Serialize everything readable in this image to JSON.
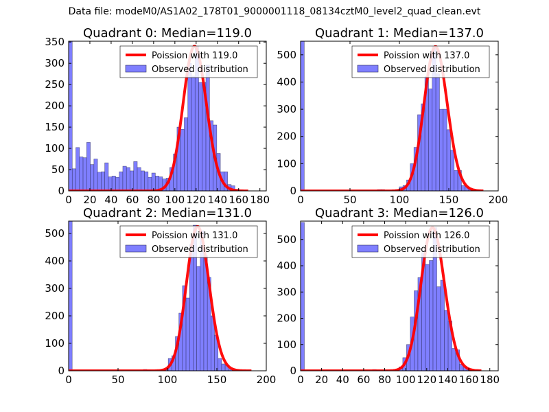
{
  "chart_data": {
    "suptitle": "Data file: modeM0/AS1A02_178T01_9000001118_08134cztM0_level2_quad_clean.evt",
    "colors": {
      "bars": "#7f7fff",
      "bar_edge": "#2a2a55",
      "poisson": "#ff0000"
    },
    "panels": [
      {
        "type": "bar",
        "title": "Quadrant 0: Median=119.0",
        "xlim": [
          0,
          186
        ],
        "ylim": [
          0,
          352
        ],
        "xticks": [
          0,
          20,
          40,
          60,
          80,
          100,
          120,
          140,
          160,
          180
        ],
        "yticks": [
          0,
          50,
          100,
          150,
          200,
          250,
          300,
          350
        ],
        "bin_width": 3.4,
        "x_left": [
          0,
          3.4,
          6.8,
          10.2,
          13.6,
          17,
          20.4,
          23.8,
          27.2,
          30.6,
          34,
          37.4,
          40.8,
          44.2,
          47.6,
          51,
          54.4,
          57.8,
          61.2,
          64.6,
          68,
          71.4,
          74.8,
          78.2,
          81.6,
          85,
          88.4,
          91.8,
          95.2,
          98.6,
          102,
          105.4,
          108.8,
          112.2,
          115.6,
          119,
          122.4,
          125.8,
          129.2,
          132.6,
          136,
          139.4,
          142.8,
          146.2,
          149.6,
          153,
          156.4,
          159.8
        ],
        "counts": [
          355,
          52,
          102,
          80,
          78,
          114,
          62,
          75,
          44,
          45,
          66,
          33,
          35,
          32,
          45,
          58,
          55,
          47,
          69,
          55,
          47,
          45,
          32,
          42,
          35,
          33,
          28,
          30,
          55,
          87,
          150,
          145,
          172,
          300,
          270,
          340,
          255,
          255,
          296,
          165,
          155,
          88,
          45,
          45,
          15,
          12,
          4,
          2
        ],
        "poisson": {
          "label": "Poission with 119.0",
          "lambda": 119.0,
          "peak": 340,
          "x_range": [
            0,
            169
          ]
        },
        "legend_observed": "Observed distribution",
        "legend_position": "top-right"
      },
      {
        "type": "bar",
        "title": "Quadrant 1: Median=137.0",
        "xlim": [
          0,
          200
        ],
        "ylim": [
          0,
          550
        ],
        "xticks": [
          0,
          50,
          100,
          150,
          200
        ],
        "yticks": [
          0,
          100,
          200,
          300,
          400,
          500
        ],
        "bin_width": 3.7,
        "x_left": [
          0,
          77.7,
          81.4,
          92.5,
          96.2,
          99.9,
          103.6,
          107.3,
          111,
          114.7,
          118.4,
          122.1,
          125.8,
          129.5,
          133.2,
          136.9,
          140.6,
          144.3,
          148,
          151.7,
          155.4,
          159.1,
          162.8,
          166.5,
          170.2,
          173.9
        ],
        "counts": [
          560,
          5,
          5,
          3,
          5,
          15,
          20,
          40,
          100,
          160,
          280,
          320,
          420,
          375,
          530,
          430,
          300,
          300,
          225,
          150,
          75,
          75,
          20,
          15,
          8,
          3
        ],
        "poisson": {
          "label": "Poission with 137.0",
          "lambda": 137.0,
          "peak": 530,
          "x_range": [
            0,
            185
          ]
        },
        "legend_observed": "Observed distribution",
        "legend_position": "top-right"
      },
      {
        "type": "bar",
        "title": "Quadrant 2: Median=131.0",
        "xlim": [
          0,
          200
        ],
        "ylim": [
          0,
          545
        ],
        "xticks": [
          0,
          50,
          100,
          150,
          200
        ],
        "yticks": [
          0,
          100,
          200,
          300,
          400,
          500
        ],
        "bin_width": 3.6,
        "x_left": [
          0,
          75.6,
          79.2,
          97.2,
          100.8,
          104.4,
          108,
          111.6,
          115.2,
          118.8,
          122.4,
          126,
          129.6,
          133.2,
          136.8,
          140.4,
          144,
          147.6,
          151.2,
          154.8,
          158.4,
          162
        ],
        "counts": [
          560,
          5,
          3,
          5,
          45,
          55,
          125,
          210,
          310,
          265,
          460,
          530,
          380,
          510,
          420,
          340,
          200,
          130,
          45,
          25,
          20,
          5
        ],
        "poisson": {
          "label": "Poission with 131.0",
          "lambda": 131.0,
          "peak": 525,
          "x_range": [
            0,
            185
          ]
        },
        "legend_observed": "Observed distribution",
        "legend_position": "top-right"
      },
      {
        "type": "bar",
        "title": "Quadrant 3: Median=126.0",
        "xlim": [
          0,
          188
        ],
        "ylim": [
          0,
          570
        ],
        "xticks": [
          0,
          20,
          40,
          60,
          80,
          100,
          120,
          140,
          160,
          180
        ],
        "yticks": [
          0,
          100,
          200,
          300,
          400,
          500
        ],
        "bin_width": 3.6,
        "x_left": [
          0,
          68.4,
          72,
          79.2,
          90,
          93.6,
          97.2,
          100.8,
          104.4,
          108,
          111.6,
          115.2,
          118.8,
          122.4,
          126,
          129.6,
          133.2,
          136.8,
          140.4,
          144,
          147.6,
          151.2,
          154.8,
          158.4
        ],
        "counts": [
          565,
          5,
          3,
          3,
          5,
          15,
          50,
          100,
          205,
          305,
          355,
          450,
          405,
          420,
          545,
          320,
          345,
          230,
          190,
          85,
          80,
          25,
          15,
          5
        ],
        "poisson": {
          "label": "Poission with 126.0",
          "lambda": 126.0,
          "peak": 545,
          "x_range": [
            0,
            172
          ]
        },
        "legend_observed": "Observed distribution",
        "legend_position": "top-right"
      }
    ]
  }
}
